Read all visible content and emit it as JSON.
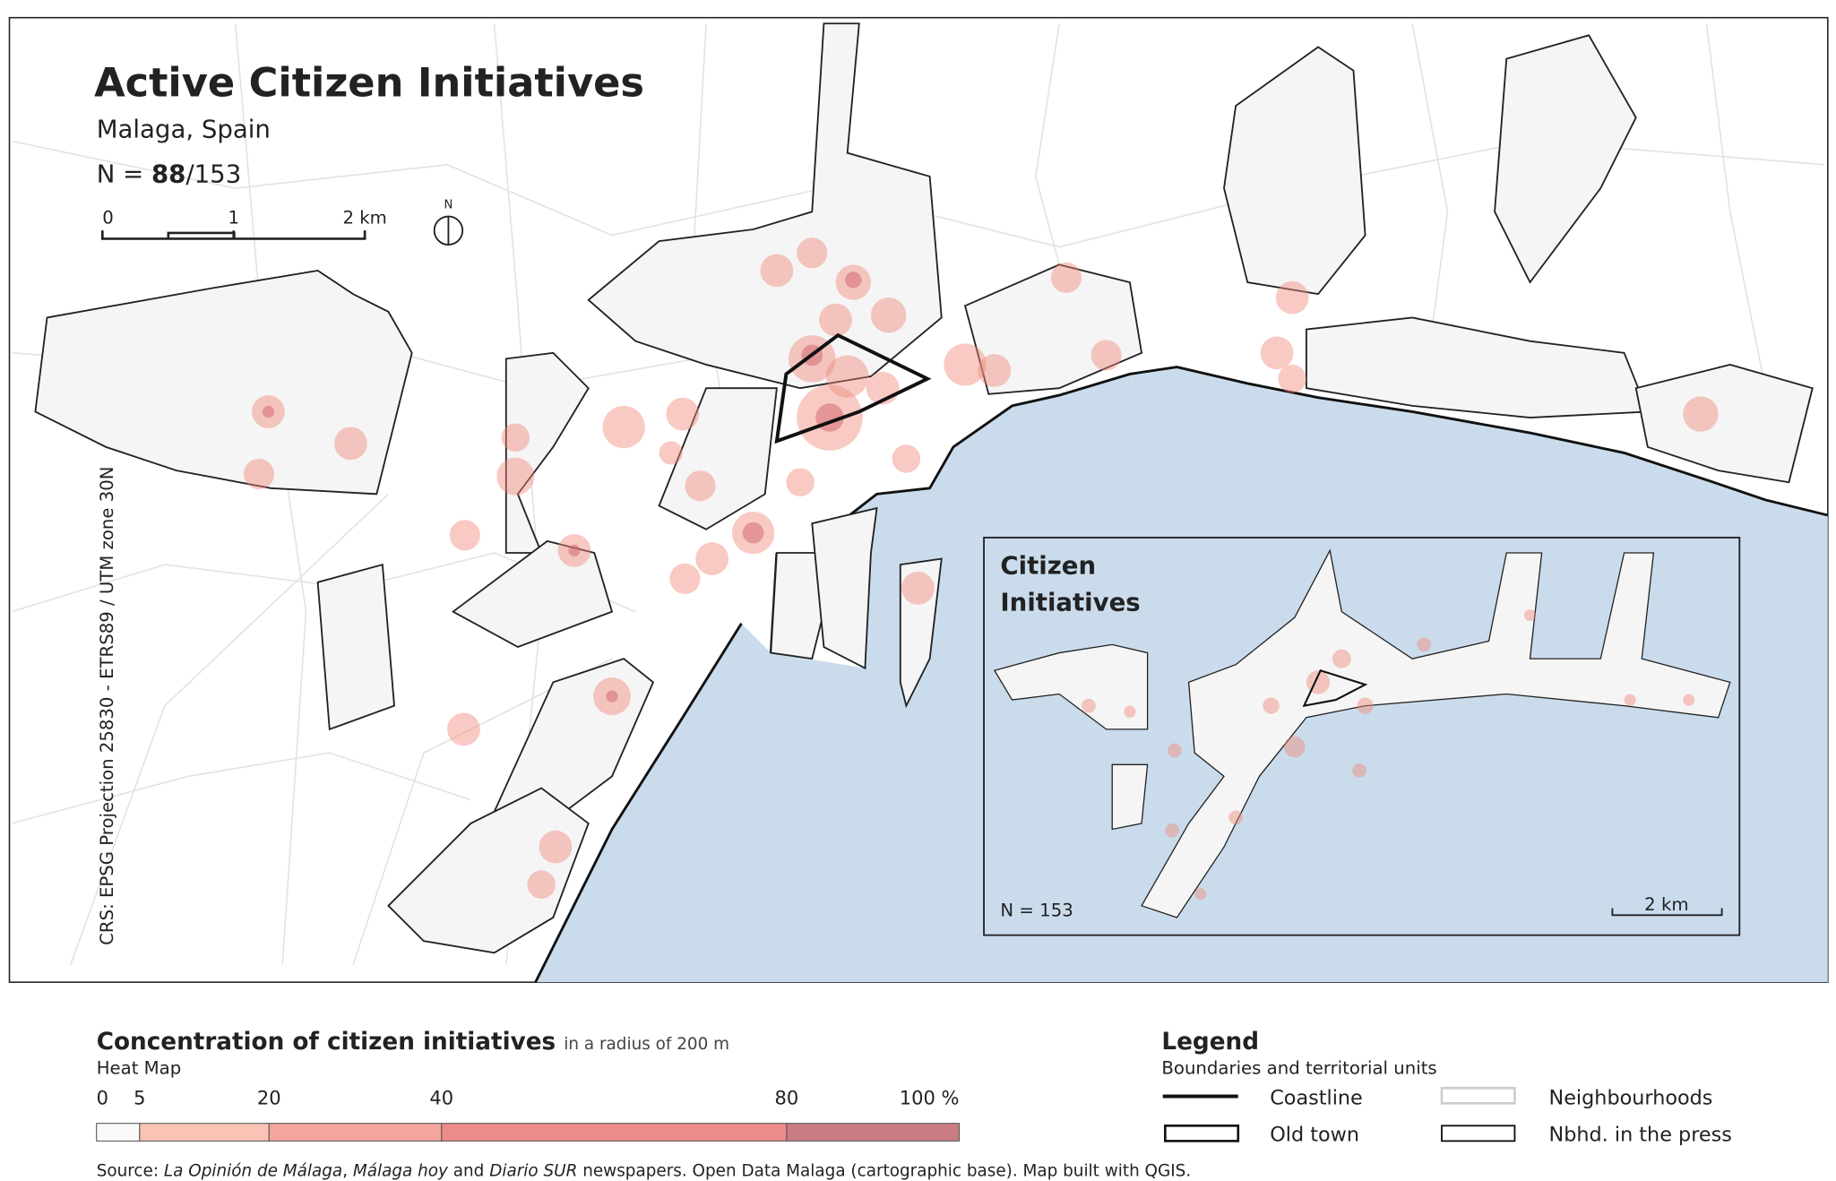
{
  "header": {
    "title": "Active Citizen Initiatives",
    "subtitle": "Malaga, Spain",
    "count": {
      "prefix": "N =",
      "selected": "88",
      "total": "/153"
    }
  },
  "scale_bar": {
    "ticks": [
      0,
      1,
      {
        "value": 2,
        "label": "2 km"
      }
    ]
  },
  "north_arrow": "N",
  "crs": "CRS: EPSG Projection 25830 - ETRS89 / UTM zone 30N",
  "inset": {
    "title_line1": "Citizen",
    "title_line2": "Initiatives",
    "count": "N = 153",
    "scale": "2 km"
  },
  "heat_legend": {
    "title": "Concentration of citizen initiatives",
    "title_note": "in a radius of 200 m",
    "subtitle": "Heat Map",
    "breaks": [
      0,
      5,
      20,
      40,
      80,
      {
        "value": 100,
        "label": "100 %"
      }
    ],
    "colors": [
      "#fafafa",
      "#f9c3b5",
      "#f4a59d",
      "#ec8b8b",
      "#c97c82"
    ]
  },
  "legend": {
    "title": "Legend",
    "subtitle": "Boundaries and territorial units",
    "items": [
      "Coastline",
      "Old town",
      "Neighbourhoods",
      "Nbhd. in the press"
    ]
  },
  "source": [
    {
      "text": "Source: ",
      "italic": false
    },
    {
      "text": "La Opinión de Málaga",
      "italic": true
    },
    {
      "text": ", ",
      "italic": false
    },
    {
      "text": "Málaga hoy",
      "italic": true
    },
    {
      "text": " and ",
      "italic": false
    },
    {
      "text": "Diario SUR",
      "italic": true
    },
    {
      "text": " newspapers. Open Data Malaga (cartographic base). Map built with QGIS.",
      "italic": false
    }
  ]
}
